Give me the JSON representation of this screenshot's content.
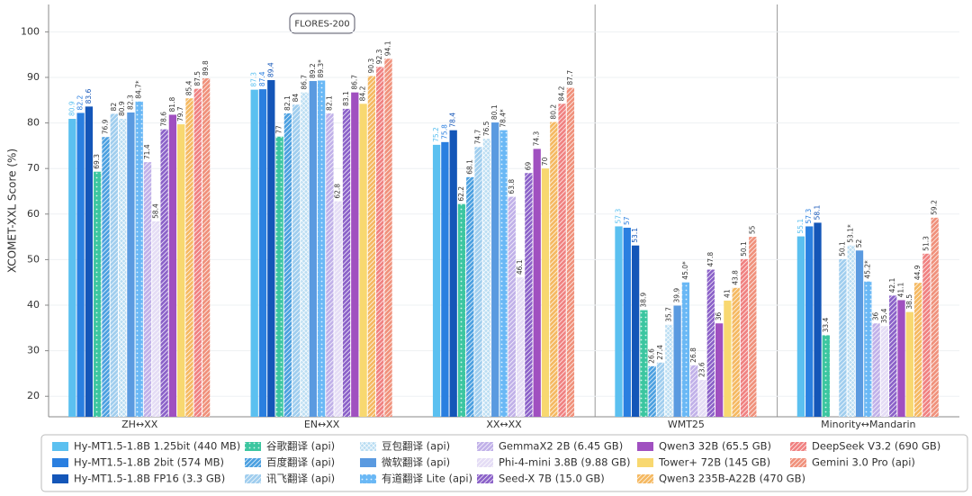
{
  "chart_data": {
    "type": "bar",
    "annotation": "FLORES-200",
    "y_label": "XCOMET-XXL Score (%)",
    "categories": [
      "ZH↔XX",
      "EN↔XX",
      "XX↔XX",
      "WMT25",
      "Minority↔Mandarin"
    ],
    "ylim": [
      15.5,
      106
    ],
    "yticks": [
      20,
      30,
      40,
      50,
      60,
      70,
      80,
      90,
      100
    ],
    "grid": true,
    "legend": "bottom",
    "series": [
      {
        "name": "Hy-MT1.5-1.8B 1.25bit (440 MB)",
        "color": "#5bc0f0",
        "pattern": "none",
        "label_color": "#5bc0f0",
        "values": [
          80.9,
          87.3,
          75.2,
          57.3,
          55.1
        ]
      },
      {
        "name": "Hy-MT1.5-1.8B 2bit (574 MB)",
        "color": "#2a7fe0",
        "pattern": "none",
        "label_color": "#2a7fe0",
        "values": [
          82.2,
          87.4,
          75.8,
          57.0,
          57.3
        ]
      },
      {
        "name": "Hy-MT1.5-1.8B FP16 (3.3 GB)",
        "color": "#1456b8",
        "pattern": "none",
        "label_color": "#1456b8",
        "values": [
          83.6,
          89.4,
          78.4,
          53.1,
          58.1
        ]
      },
      {
        "name": "谷歌翻译 (api)",
        "color": "#3cc6a0",
        "pattern": "dots",
        "values": [
          69.3,
          77.0,
          62.2,
          38.9,
          33.4
        ]
      },
      {
        "name": "百度翻译 (api)",
        "color": "#4a9fe0",
        "pattern": "hatch",
        "values": [
          76.9,
          82.1,
          68.1,
          26.6,
          null
        ]
      },
      {
        "name": "讯飞翻译 (api)",
        "color": "#9fcdee",
        "pattern": "hatch",
        "values": [
          82.0,
          84.0,
          74.7,
          27.4,
          50.1
        ]
      },
      {
        "name": "豆包翻译 (api)",
        "color": "#b8dcf2",
        "pattern": "cross",
        "values": [
          80.9,
          86.7,
          76.5,
          35.7,
          53.1
        ],
        "value_labels": [
          "80.9",
          "86.7",
          "76.5",
          "35.7",
          "53.1*"
        ]
      },
      {
        "name": "微软翻译 (api)",
        "color": "#5a9ae0",
        "pattern": "none",
        "values": [
          82.3,
          89.2,
          80.1,
          39.9,
          52.0
        ]
      },
      {
        "name": "有道翻译 Lite (api)",
        "color": "#6ab8f5",
        "pattern": "dots",
        "values": [
          84.7,
          89.3,
          78.4,
          45.0,
          45.2
        ],
        "value_labels": [
          "84.7*",
          "89.3*",
          "78.4*",
          "45.0*",
          "45.2*"
        ]
      },
      {
        "name": "GemmaX2 2B (6.45 GB)",
        "color": "#c0b0e8",
        "pattern": "hatch",
        "values": [
          71.4,
          82.1,
          63.8,
          26.8,
          36.0
        ]
      },
      {
        "name": "Phi-4-mini 3.8B (9.88 GB)",
        "color": "#e4dcf5",
        "pattern": "hatch",
        "values": [
          58.4,
          62.8,
          46.1,
          23.6,
          35.4
        ]
      },
      {
        "name": "Seed-X 7B (15.0 GB)",
        "color": "#8a60c8",
        "pattern": "hatch",
        "values": [
          78.6,
          83.1,
          69.0,
          47.8,
          42.1
        ]
      },
      {
        "name": "Qwen3 32B (65.5 GB)",
        "color": "#a050c0",
        "pattern": "none",
        "values": [
          81.8,
          86.7,
          74.3,
          36.0,
          41.1
        ]
      },
      {
        "name": "Tower+ 72B (145 GB)",
        "color": "#f8d870",
        "pattern": "none",
        "values": [
          79.7,
          84.2,
          70.0,
          41.0,
          38.5
        ]
      },
      {
        "name": "Qwen3 235B-A22B (470 GB)",
        "color": "#f5b860",
        "pattern": "hatch",
        "values": [
          85.4,
          90.3,
          80.2,
          43.8,
          44.9
        ]
      },
      {
        "name": "DeepSeek V3.2 (690 GB)",
        "color": "#f08080",
        "pattern": "hatch",
        "values": [
          87.5,
          92.3,
          84.2,
          50.1,
          51.3
        ]
      },
      {
        "name": "Gemini 3.0 Pro (api)",
        "color": "#f0907a",
        "pattern": "hatch",
        "values": [
          89.8,
          94.1,
          87.7,
          55.0,
          59.2
        ]
      }
    ]
  }
}
